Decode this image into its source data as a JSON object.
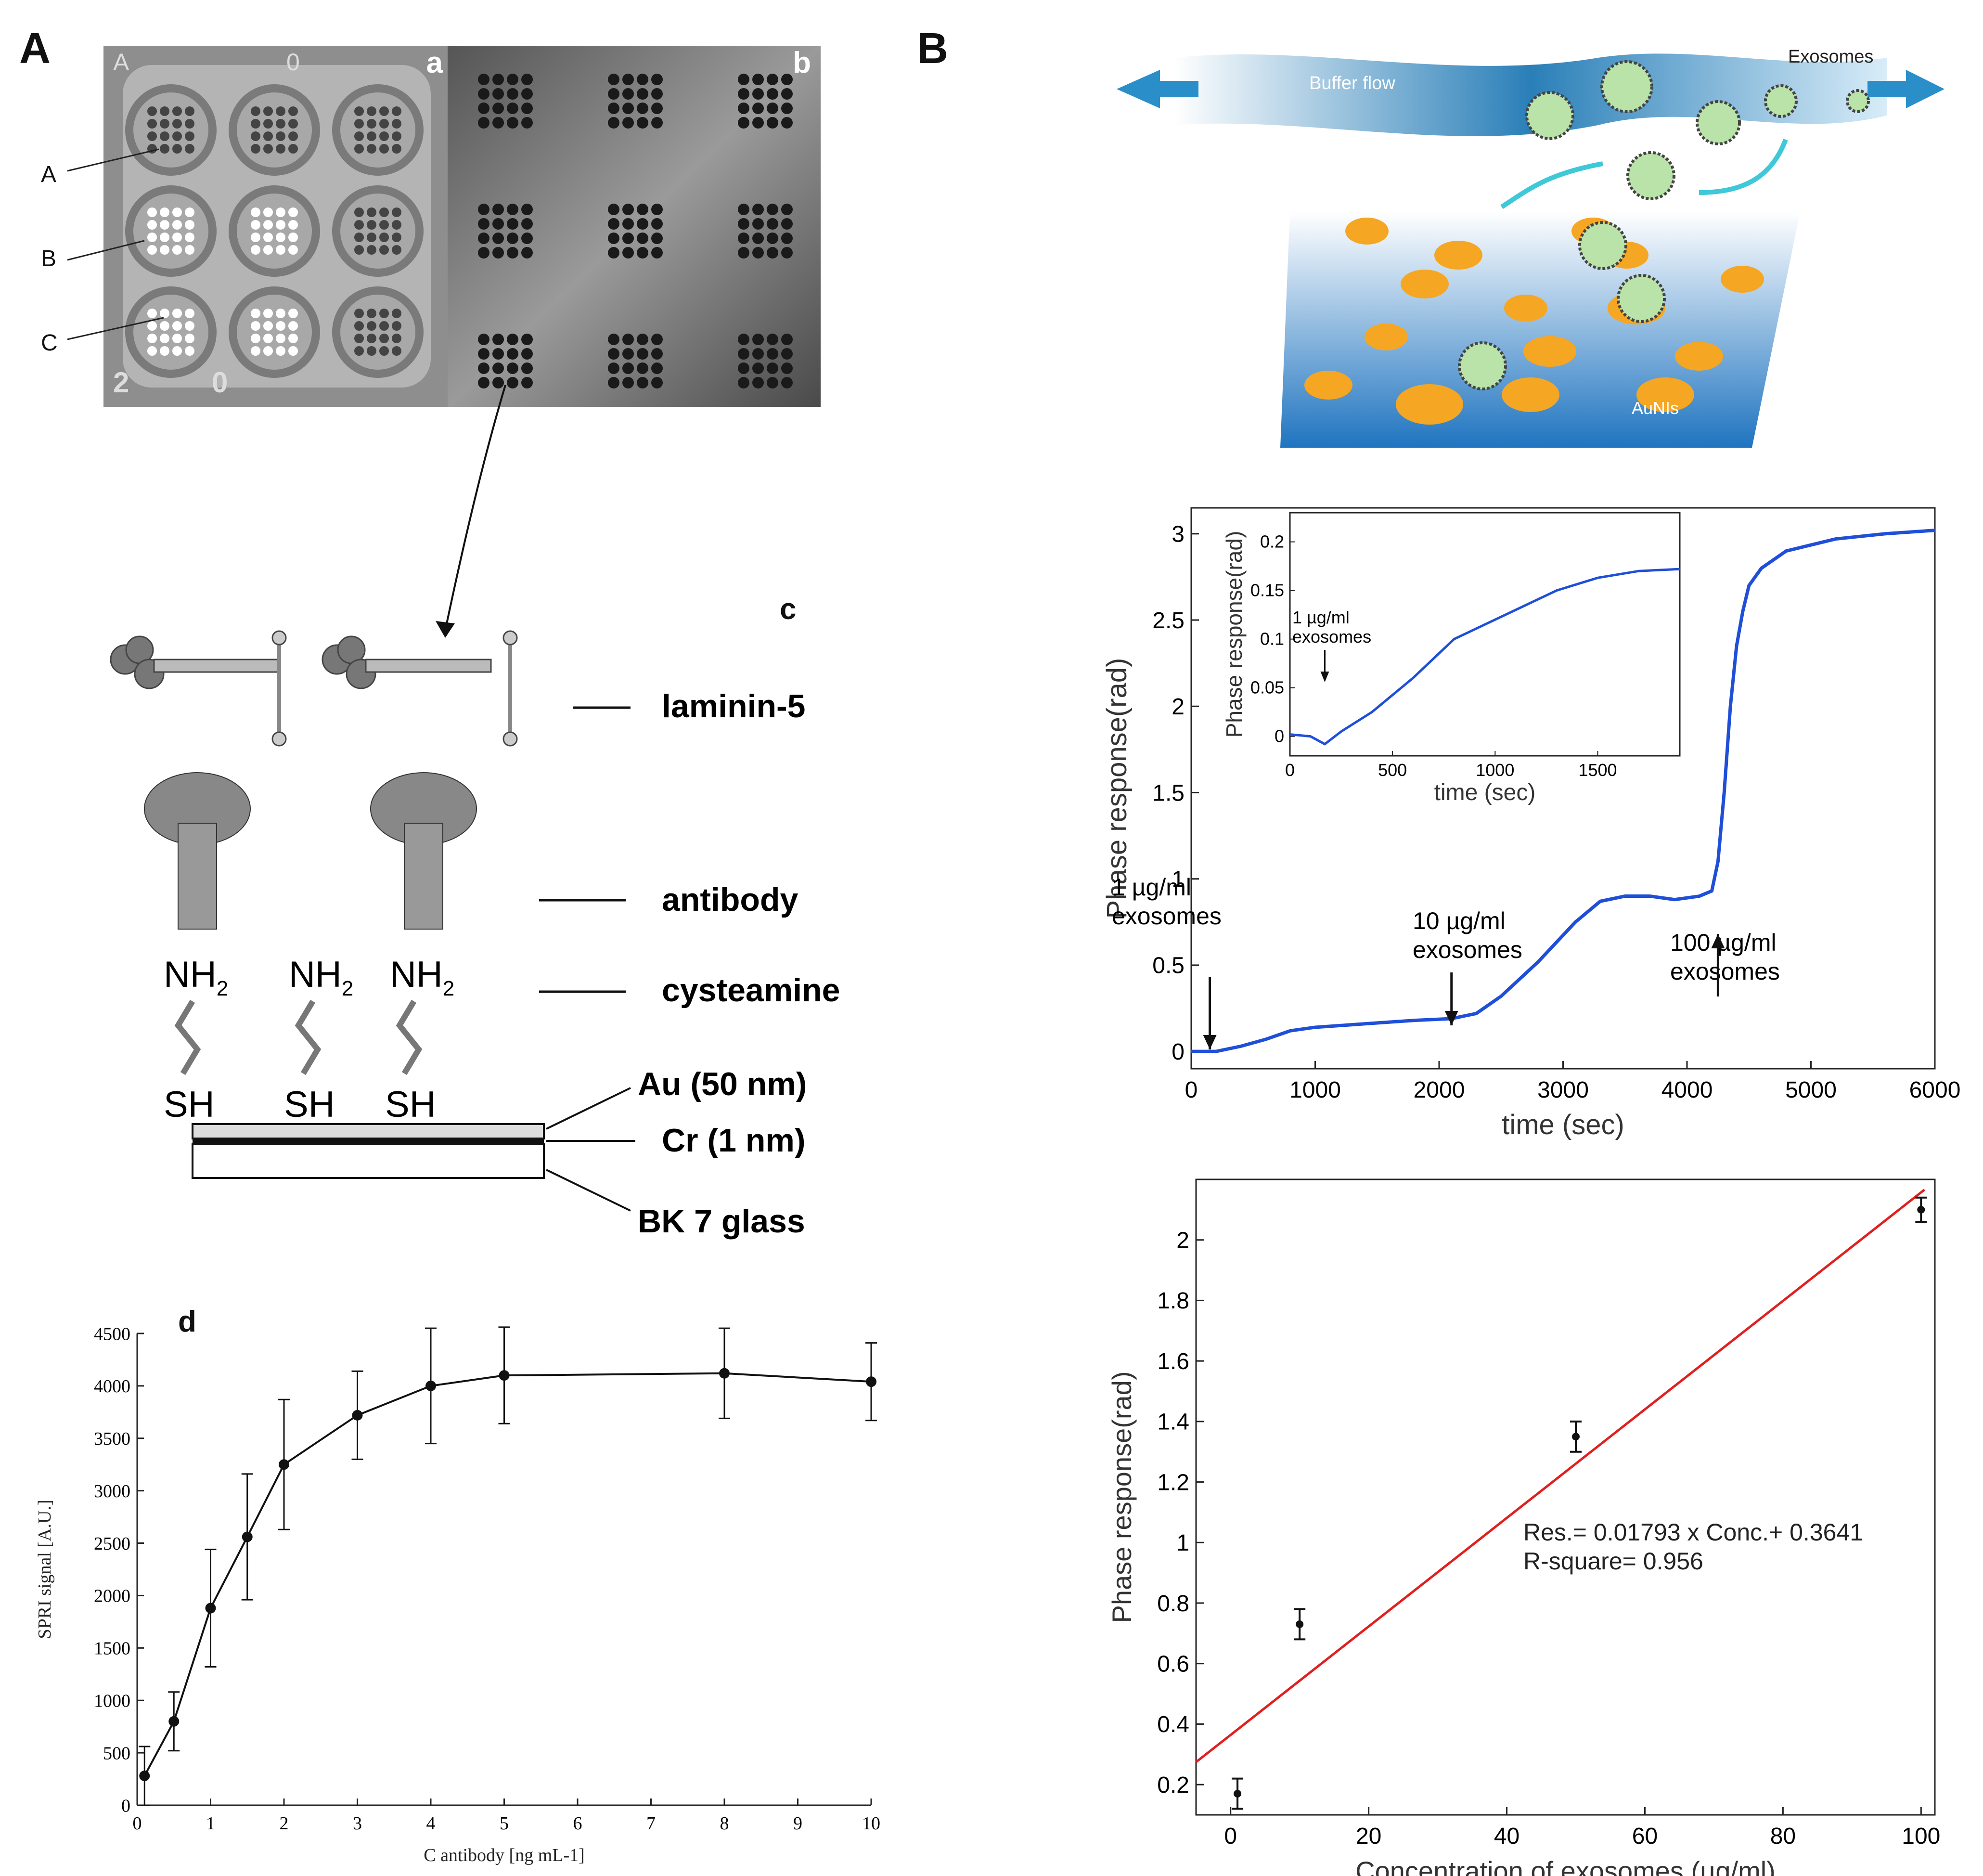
{
  "panels": {
    "A": "A",
    "B": "B",
    "sub_a": "a",
    "sub_b": "b",
    "sub_c": "c",
    "sub_d": "d"
  },
  "photo_a": {
    "row_labels": [
      "A",
      "B",
      "C"
    ],
    "corner_marks": [
      "A",
      "0",
      "2",
      "0"
    ]
  },
  "schematic_c": {
    "layers": [
      "laminin-5",
      "antibody",
      "cysteamine",
      "Au (50 nm)",
      "Cr (1 nm)",
      "BK 7 glass"
    ],
    "amine": "NH",
    "amine_sub": "2",
    "thiol": "SH"
  },
  "schematic_B": {
    "buffer_flow": "Buffer flow",
    "exosomes": "Exosomes",
    "aunis": "AuNIs"
  },
  "colors": {
    "blue_line": "#1f4fd8",
    "red_line": "#e02020",
    "gold": "#f5a623",
    "flow": "#3a8fc8"
  },
  "chart_data": [
    {
      "id": "d",
      "type": "line",
      "title": "",
      "xlabel": "C antibody [ng mL-1]",
      "ylabel": "SPRI signal [A.U.]",
      "xlim": [
        0,
        10
      ],
      "ylim": [
        0,
        4500
      ],
      "xticks": [
        0,
        1,
        2,
        3,
        4,
        5,
        6,
        7,
        8,
        9,
        10
      ],
      "yticks": [
        0,
        500,
        1000,
        1500,
        2000,
        2500,
        3000,
        3500,
        4000,
        4500
      ],
      "x": [
        0.1,
        0.5,
        1,
        1.5,
        2,
        3,
        4,
        5,
        8,
        10
      ],
      "y": [
        280,
        800,
        1880,
        2560,
        3250,
        3720,
        4000,
        4100,
        4120,
        4040
      ],
      "err": [
        280,
        280,
        560,
        600,
        620,
        420,
        550,
        460,
        430,
        370
      ]
    },
    {
      "id": "B-time",
      "type": "line",
      "xlabel": "time (sec)",
      "ylabel": "Phase response(rad)",
      "xlim": [
        0,
        6000
      ],
      "ylim": [
        -0.1,
        3.15
      ],
      "xticks": [
        0,
        1000,
        2000,
        3000,
        4000,
        5000,
        6000
      ],
      "yticks": [
        0,
        0.5,
        1,
        1.5,
        2,
        2.5,
        3
      ],
      "x": [
        0,
        200,
        400,
        600,
        800,
        1000,
        1400,
        1800,
        2100,
        2300,
        2500,
        2800,
        3100,
        3300,
        3500,
        3700,
        3900,
        4100,
        4200,
        4250,
        4300,
        4350,
        4400,
        4450,
        4500,
        4600,
        4800,
        5200,
        5600,
        6000
      ],
      "y": [
        0,
        0,
        0.03,
        0.07,
        0.12,
        0.14,
        0.16,
        0.18,
        0.19,
        0.22,
        0.32,
        0.52,
        0.75,
        0.87,
        0.9,
        0.9,
        0.88,
        0.9,
        0.93,
        1.1,
        1.5,
        2.0,
        2.35,
        2.55,
        2.7,
        2.8,
        2.9,
        2.97,
        3.0,
        3.02
      ],
      "annotations": [
        {
          "text": "1 µg/ml",
          "text2": "exosomes",
          "x": 150
        },
        {
          "text": "10 µg/ml",
          "text2": "exosomes",
          "x": 2100
        },
        {
          "text": "100 µg/ml",
          "text2": "exosomes",
          "x": 4250
        }
      ]
    },
    {
      "id": "B-inset",
      "type": "line",
      "xlabel": "time (sec)",
      "ylabel": "Phase response(rad)",
      "xlim": [
        0,
        1900
      ],
      "ylim": [
        -0.02,
        0.23
      ],
      "xticks": [
        0,
        500,
        1000,
        1500
      ],
      "yticks": [
        0,
        0.05,
        0.1,
        0.15,
        0.2
      ],
      "x": [
        0,
        100,
        170,
        250,
        400,
        600,
        750,
        800,
        900,
        1100,
        1300,
        1500,
        1700,
        1900
      ],
      "y": [
        0.002,
        0.0,
        -0.008,
        0.005,
        0.025,
        0.06,
        0.09,
        0.1,
        0.11,
        0.13,
        0.15,
        0.163,
        0.17,
        0.172
      ],
      "annotation": {
        "text": "1 µg/ml",
        "text2": "exosomes",
        "x": 170
      }
    },
    {
      "id": "B-conc",
      "type": "scatter",
      "xlabel": "Concentration of exosomes (µg/ml)",
      "ylabel": "Phase response(rad)",
      "xlim": [
        -5,
        102
      ],
      "ylim": [
        0.1,
        2.2
      ],
      "xticks": [
        0,
        20,
        40,
        60,
        80,
        100
      ],
      "yticks": [
        0.2,
        0.4,
        0.6,
        0.8,
        1,
        1.2,
        1.4,
        1.6,
        1.8,
        2
      ],
      "x": [
        1,
        10,
        50,
        100
      ],
      "y": [
        0.17,
        0.73,
        1.35,
        2.1
      ],
      "err": [
        0.05,
        0.05,
        0.05,
        0.04
      ],
      "fit": {
        "slope": 0.01793,
        "intercept": 0.3641
      },
      "equation": "Res.= 0.01793 x Conc.+ 0.3641",
      "rsquare": "R-square= 0.956"
    }
  ]
}
